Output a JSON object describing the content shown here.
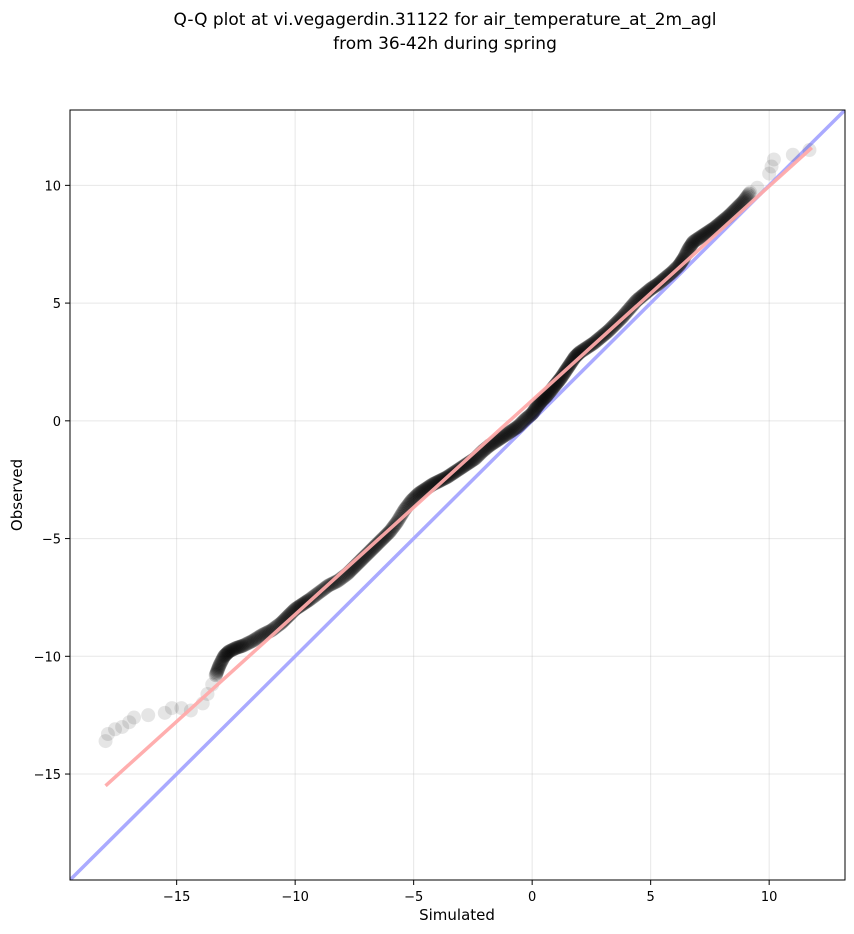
{
  "chart_data": {
    "type": "scatter",
    "title_line1": "Q-Q plot at vi.vegagerdin.31122 for air_temperature_at_2m_agl",
    "title_line2": "from 36-42h during spring",
    "xlabel": "Simulated",
    "ylabel": "Observed",
    "xlim": [
      -19.5,
      13.2
    ],
    "ylim": [
      -19.5,
      13.2
    ],
    "grid": true,
    "xticks": [
      -15,
      -10,
      -5,
      0,
      5,
      10
    ],
    "yticks": [
      -15,
      -10,
      -5,
      0,
      5,
      10
    ],
    "xtick_labels": [
      "−15",
      "−10",
      "−5",
      "0",
      "5",
      "10"
    ],
    "ytick_labels": [
      "−15",
      "−10",
      "−5",
      "0",
      "5",
      "10"
    ],
    "reference_line": {
      "description": "1:1 line",
      "color": "#aaaaff",
      "from": [
        -19.5,
        -19.5
      ],
      "to": [
        13.2,
        13.2
      ]
    },
    "fit_line": {
      "color": "#ffaaaa",
      "from": [
        -18.0,
        -15.5
      ],
      "to": [
        11.8,
        11.6
      ]
    },
    "point_color": "#000000",
    "series": [
      {
        "quantiles": [
          [
            -18.0,
            -13.6
          ],
          [
            -17.9,
            -13.3
          ],
          [
            -17.6,
            -13.1
          ],
          [
            -17.3,
            -13.0
          ],
          [
            -17.0,
            -12.8
          ],
          [
            -16.8,
            -12.6
          ],
          [
            -16.2,
            -12.5
          ],
          [
            -15.5,
            -12.4
          ],
          [
            -15.2,
            -12.2
          ],
          [
            -14.8,
            -12.2
          ],
          [
            -14.4,
            -12.3
          ],
          [
            -13.9,
            -12.0
          ],
          [
            -13.7,
            -11.6
          ],
          [
            -13.5,
            -11.2
          ],
          [
            -13.35,
            -10.8
          ],
          [
            -13.2,
            -10.4
          ],
          [
            -13.0,
            -10.0
          ],
          [
            -12.8,
            -9.8
          ],
          [
            -12.5,
            -9.65
          ],
          [
            -12.2,
            -9.55
          ],
          [
            -11.8,
            -9.35
          ],
          [
            -11.4,
            -9.1
          ],
          [
            -11.0,
            -8.9
          ],
          [
            -10.6,
            -8.6
          ],
          [
            -10.3,
            -8.3
          ],
          [
            -10.0,
            -8.0
          ],
          [
            -9.7,
            -7.8
          ],
          [
            -9.4,
            -7.6
          ],
          [
            -9.0,
            -7.3
          ],
          [
            -8.6,
            -7.0
          ],
          [
            -8.2,
            -6.8
          ],
          [
            -7.8,
            -6.5
          ],
          [
            -7.5,
            -6.2
          ],
          [
            -7.2,
            -5.9
          ],
          [
            -6.9,
            -5.6
          ],
          [
            -6.6,
            -5.3
          ],
          [
            -6.3,
            -5.0
          ],
          [
            -6.0,
            -4.7
          ],
          [
            -5.7,
            -4.3
          ],
          [
            -5.4,
            -3.8
          ],
          [
            -5.1,
            -3.4
          ],
          [
            -4.8,
            -3.1
          ],
          [
            -4.5,
            -2.9
          ],
          [
            -4.2,
            -2.7
          ],
          [
            -3.9,
            -2.55
          ],
          [
            -3.6,
            -2.4
          ],
          [
            -3.3,
            -2.2
          ],
          [
            -3.0,
            -2.0
          ],
          [
            -2.7,
            -1.8
          ],
          [
            -2.4,
            -1.6
          ],
          [
            -2.1,
            -1.3
          ],
          [
            -1.8,
            -1.05
          ],
          [
            -1.5,
            -0.85
          ],
          [
            -1.2,
            -0.65
          ],
          [
            -0.9,
            -0.45
          ],
          [
            -0.6,
            -0.25
          ],
          [
            -0.3,
            0.05
          ],
          [
            0.0,
            0.3
          ],
          [
            0.2,
            0.6
          ],
          [
            0.4,
            0.85
          ],
          [
            0.6,
            1.05
          ],
          [
            0.8,
            1.3
          ],
          [
            1.0,
            1.55
          ],
          [
            1.2,
            1.8
          ],
          [
            1.4,
            2.1
          ],
          [
            1.6,
            2.4
          ],
          [
            1.8,
            2.7
          ],
          [
            2.0,
            2.9
          ],
          [
            2.3,
            3.1
          ],
          [
            2.6,
            3.3
          ],
          [
            2.9,
            3.55
          ],
          [
            3.2,
            3.8
          ],
          [
            3.5,
            4.1
          ],
          [
            3.8,
            4.4
          ],
          [
            4.1,
            4.75
          ],
          [
            4.4,
            5.1
          ],
          [
            4.7,
            5.35
          ],
          [
            5.0,
            5.6
          ],
          [
            5.3,
            5.8
          ],
          [
            5.6,
            6.05
          ],
          [
            5.9,
            6.3
          ],
          [
            6.2,
            6.6
          ],
          [
            6.4,
            6.9
          ],
          [
            6.6,
            7.3
          ],
          [
            6.8,
            7.6
          ],
          [
            7.1,
            7.8
          ],
          [
            7.4,
            8.0
          ],
          [
            7.7,
            8.2
          ],
          [
            8.0,
            8.45
          ],
          [
            8.3,
            8.7
          ],
          [
            8.6,
            9.0
          ],
          [
            8.9,
            9.3
          ],
          [
            9.2,
            9.7
          ],
          [
            9.5,
            9.9
          ],
          [
            10.0,
            10.5
          ],
          [
            10.1,
            10.8
          ],
          [
            10.2,
            11.1
          ],
          [
            11.0,
            11.3
          ],
          [
            11.7,
            11.5
          ]
        ]
      }
    ]
  }
}
